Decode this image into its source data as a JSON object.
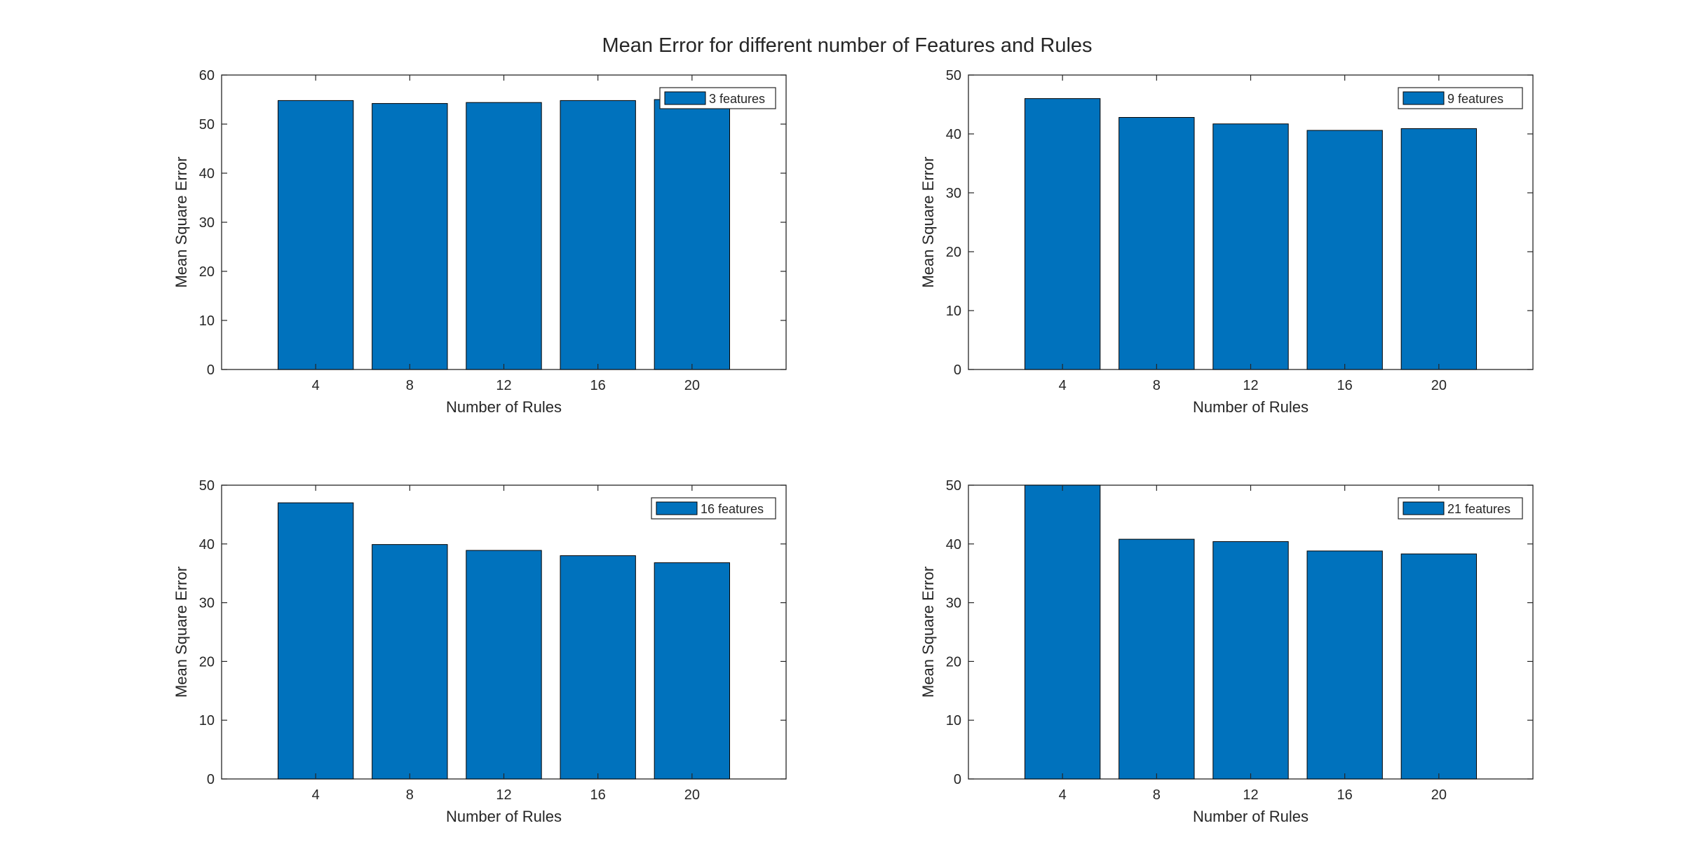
{
  "figure": {
    "title": "Mean Error for different number of Features and Rules"
  },
  "colors": {
    "bar": "#0072BD",
    "axis": "#262626",
    "background": "#ffffff"
  },
  "chart_data": [
    {
      "type": "bar",
      "categories": [
        "4",
        "8",
        "12",
        "16",
        "20"
      ],
      "series": [
        {
          "name": "3 features",
          "values": [
            54.8,
            54.2,
            54.4,
            54.8,
            55.0
          ]
        }
      ],
      "xlabel": "Number of Rules",
      "ylabel": "Mean Square Error",
      "yticks": [
        "0",
        "10",
        "20",
        "30",
        "40",
        "50",
        "60"
      ],
      "ylim": [
        0,
        60
      ],
      "xlim": [
        0,
        24
      ],
      "x": [
        4,
        8,
        12,
        16,
        20
      ],
      "legend": "top-right",
      "grid": false
    },
    {
      "type": "bar",
      "categories": [
        "4",
        "8",
        "12",
        "16",
        "20"
      ],
      "series": [
        {
          "name": "9 features",
          "values": [
            46.0,
            42.8,
            41.7,
            40.6,
            40.9
          ]
        }
      ],
      "xlabel": "Number of Rules",
      "ylabel": "Mean Square Error",
      "yticks": [
        "0",
        "10",
        "20",
        "30",
        "40",
        "50"
      ],
      "ylim": [
        0,
        50
      ],
      "xlim": [
        0,
        24
      ],
      "x": [
        4,
        8,
        12,
        16,
        20
      ],
      "legend": "top-right",
      "grid": false
    },
    {
      "type": "bar",
      "categories": [
        "4",
        "8",
        "12",
        "16",
        "20"
      ],
      "series": [
        {
          "name": "16 features",
          "values": [
            47.0,
            39.9,
            38.9,
            38.0,
            36.8
          ]
        }
      ],
      "xlabel": "Number of Rules",
      "ylabel": "Mean Square Error",
      "yticks": [
        "0",
        "10",
        "20",
        "30",
        "40",
        "50"
      ],
      "ylim": [
        0,
        50
      ],
      "xlim": [
        0,
        24
      ],
      "x": [
        4,
        8,
        12,
        16,
        20
      ],
      "legend": "top-right",
      "grid": false
    },
    {
      "type": "bar",
      "categories": [
        "4",
        "8",
        "12",
        "16",
        "20"
      ],
      "series": [
        {
          "name": "21 features",
          "values": [
            50.0,
            40.8,
            40.4,
            38.8,
            38.3
          ]
        }
      ],
      "xlabel": "Number of Rules",
      "ylabel": "Mean Square Error",
      "yticks": [
        "0",
        "10",
        "20",
        "30",
        "40",
        "50"
      ],
      "ylim": [
        0,
        50
      ],
      "xlim": [
        0,
        24
      ],
      "x": [
        4,
        8,
        12,
        16,
        20
      ],
      "legend": "top-right",
      "grid": false
    }
  ]
}
